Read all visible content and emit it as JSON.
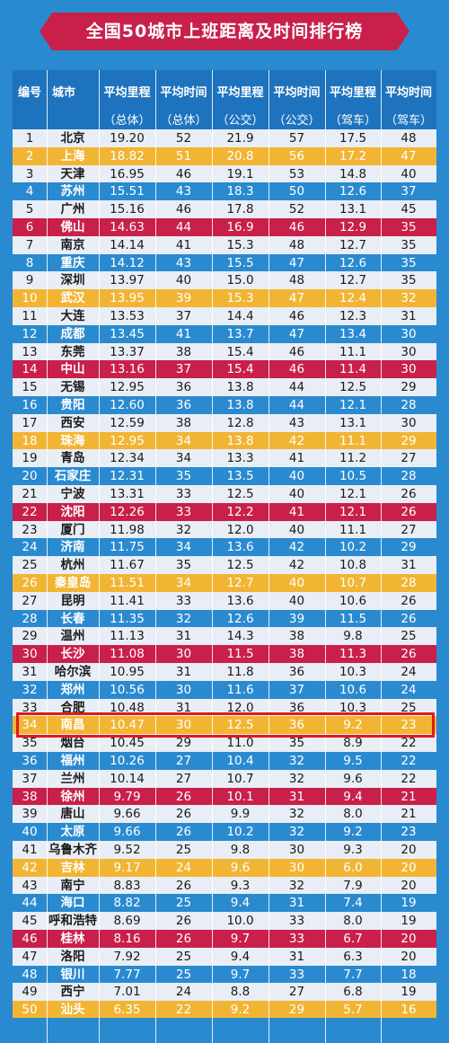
{
  "title": "全国50城市上班距离及时间排行榜",
  "headers": [
    {
      "l1": "编号",
      "l2": ""
    },
    {
      "l1": "城市",
      "l2": ""
    },
    {
      "l1": "平均里程",
      "l2": "（总体）"
    },
    {
      "l1": "平均时间",
      "l2": "（总体）"
    },
    {
      "l1": "平均里程",
      "l2": "（公交）"
    },
    {
      "l1": "平均时间",
      "l2": "（公交）"
    },
    {
      "l1": "平均里程",
      "l2": "（驾车）"
    },
    {
      "l1": "平均时间",
      "l2": "（驾车）"
    }
  ],
  "colors": {
    "odd": "#e9eef6",
    "even": "#2a8ad0",
    "gold": "#f2b533",
    "red": "#c8204a",
    "highlight_border": "#e01b1b"
  },
  "highlighted_row": "34",
  "rows": [
    {
      "n": "1",
      "city": "北京",
      "d1": "19.20",
      "t1": "52",
      "d2": "21.9",
      "t2": "57",
      "d3": "17.5",
      "t3": "48",
      "style": "odd"
    },
    {
      "n": "2",
      "city": "上海",
      "d1": "18.82",
      "t1": "51",
      "d2": "20.8",
      "t2": "56",
      "d3": "17.2",
      "t3": "47",
      "style": "gold"
    },
    {
      "n": "3",
      "city": "天津",
      "d1": "16.95",
      "t1": "46",
      "d2": "19.1",
      "t2": "53",
      "d3": "14.8",
      "t3": "40",
      "style": "odd"
    },
    {
      "n": "4",
      "city": "苏州",
      "d1": "15.51",
      "t1": "43",
      "d2": "18.3",
      "t2": "50",
      "d3": "12.6",
      "t3": "37",
      "style": "even"
    },
    {
      "n": "5",
      "city": "广州",
      "d1": "15.16",
      "t1": "46",
      "d2": "17.8",
      "t2": "52",
      "d3": "13.1",
      "t3": "45",
      "style": "odd"
    },
    {
      "n": "6",
      "city": "佛山",
      "d1": "14.63",
      "t1": "44",
      "d2": "16.9",
      "t2": "46",
      "d3": "12.9",
      "t3": "35",
      "style": "red"
    },
    {
      "n": "7",
      "city": "南京",
      "d1": "14.14",
      "t1": "41",
      "d2": "15.3",
      "t2": "48",
      "d3": "12.7",
      "t3": "35",
      "style": "odd"
    },
    {
      "n": "8",
      "city": "重庆",
      "d1": "14.12",
      "t1": "43",
      "d2": "15.5",
      "t2": "47",
      "d3": "12.6",
      "t3": "35",
      "style": "even"
    },
    {
      "n": "9",
      "city": "深圳",
      "d1": "13.97",
      "t1": "40",
      "d2": "15.0",
      "t2": "48",
      "d3": "12.7",
      "t3": "35",
      "style": "odd"
    },
    {
      "n": "10",
      "city": "武汉",
      "d1": "13.95",
      "t1": "39",
      "d2": "15.3",
      "t2": "47",
      "d3": "12.4",
      "t3": "32",
      "style": "gold"
    },
    {
      "n": "11",
      "city": "大连",
      "d1": "13.53",
      "t1": "37",
      "d2": "14.4",
      "t2": "46",
      "d3": "12.3",
      "t3": "31",
      "style": "odd"
    },
    {
      "n": "12",
      "city": "成都",
      "d1": "13.45",
      "t1": "41",
      "d2": "13.7",
      "t2": "47",
      "d3": "13.4",
      "t3": "30",
      "style": "even"
    },
    {
      "n": "13",
      "city": "东莞",
      "d1": "13.37",
      "t1": "38",
      "d2": "15.4",
      "t2": "46",
      "d3": "11.1",
      "t3": "30",
      "style": "odd"
    },
    {
      "n": "14",
      "city": "中山",
      "d1": "13.16",
      "t1": "37",
      "d2": "15.4",
      "t2": "46",
      "d3": "11.4",
      "t3": "30",
      "style": "red"
    },
    {
      "n": "15",
      "city": "无锡",
      "d1": "12.95",
      "t1": "36",
      "d2": "13.8",
      "t2": "44",
      "d3": "12.5",
      "t3": "29",
      "style": "odd"
    },
    {
      "n": "16",
      "city": "贵阳",
      "d1": "12.60",
      "t1": "36",
      "d2": "13.8",
      "t2": "44",
      "d3": "12.1",
      "t3": "28",
      "style": "even"
    },
    {
      "n": "17",
      "city": "西安",
      "d1": "12.59",
      "t1": "38",
      "d2": "12.8",
      "t2": "43",
      "d3": "13.1",
      "t3": "30",
      "style": "odd"
    },
    {
      "n": "18",
      "city": "珠海",
      "d1": "12.95",
      "t1": "34",
      "d2": "13.8",
      "t2": "42",
      "d3": "11.1",
      "t3": "29",
      "style": "gold"
    },
    {
      "n": "19",
      "city": "青岛",
      "d1": "12.34",
      "t1": "34",
      "d2": "13.3",
      "t2": "41",
      "d3": "11.2",
      "t3": "27",
      "style": "odd"
    },
    {
      "n": "20",
      "city": "石家庄",
      "d1": "12.31",
      "t1": "35",
      "d2": "13.5",
      "t2": "40",
      "d3": "10.5",
      "t3": "28",
      "style": "even"
    },
    {
      "n": "21",
      "city": "宁波",
      "d1": "13.31",
      "t1": "33",
      "d2": "12.5",
      "t2": "40",
      "d3": "12.1",
      "t3": "26",
      "style": "odd"
    },
    {
      "n": "22",
      "city": "沈阳",
      "d1": "12.26",
      "t1": "33",
      "d2": "12.2",
      "t2": "41",
      "d3": "12.1",
      "t3": "26",
      "style": "red"
    },
    {
      "n": "23",
      "city": "厦门",
      "d1": "11.98",
      "t1": "32",
      "d2": "12.0",
      "t2": "40",
      "d3": "11.1",
      "t3": "27",
      "style": "odd"
    },
    {
      "n": "24",
      "city": "济南",
      "d1": "11.75",
      "t1": "34",
      "d2": "13.6",
      "t2": "42",
      "d3": "10.2",
      "t3": "29",
      "style": "even"
    },
    {
      "n": "25",
      "city": "杭州",
      "d1": "11.67",
      "t1": "35",
      "d2": "12.5",
      "t2": "42",
      "d3": "10.8",
      "t3": "31",
      "style": "odd"
    },
    {
      "n": "26",
      "city": "秦皇岛",
      "d1": "11.51",
      "t1": "34",
      "d2": "12.7",
      "t2": "40",
      "d3": "10.7",
      "t3": "28",
      "style": "gold"
    },
    {
      "n": "27",
      "city": "昆明",
      "d1": "11.41",
      "t1": "33",
      "d2": "13.6",
      "t2": "40",
      "d3": "10.6",
      "t3": "26",
      "style": "odd"
    },
    {
      "n": "28",
      "city": "长春",
      "d1": "11.35",
      "t1": "32",
      "d2": "12.6",
      "t2": "39",
      "d3": "11.5",
      "t3": "26",
      "style": "even"
    },
    {
      "n": "29",
      "city": "温州",
      "d1": "11.13",
      "t1": "31",
      "d2": "14.3",
      "t2": "38",
      "d3": "9.8",
      "t3": "25",
      "style": "odd"
    },
    {
      "n": "30",
      "city": "长沙",
      "d1": "11.08",
      "t1": "30",
      "d2": "11.5",
      "t2": "38",
      "d3": "11.3",
      "t3": "26",
      "style": "red"
    },
    {
      "n": "31",
      "city": "哈尔滨",
      "d1": "10.95",
      "t1": "31",
      "d2": "11.8",
      "t2": "36",
      "d3": "10.3",
      "t3": "24",
      "style": "odd"
    },
    {
      "n": "32",
      "city": "郑州",
      "d1": "10.56",
      "t1": "30",
      "d2": "11.6",
      "t2": "37",
      "d3": "10.6",
      "t3": "24",
      "style": "even"
    },
    {
      "n": "33",
      "city": "合肥",
      "d1": "10.48",
      "t1": "31",
      "d2": "12.0",
      "t2": "36",
      "d3": "10.3",
      "t3": "25",
      "style": "odd"
    },
    {
      "n": "34",
      "city": "南昌",
      "d1": "10.47",
      "t1": "30",
      "d2": "12.5",
      "t2": "36",
      "d3": "9.2",
      "t3": "23",
      "style": "gold"
    },
    {
      "n": "35",
      "city": "烟台",
      "d1": "10.45",
      "t1": "29",
      "d2": "11.0",
      "t2": "35",
      "d3": "8.9",
      "t3": "22",
      "style": "odd"
    },
    {
      "n": "36",
      "city": "福州",
      "d1": "10.26",
      "t1": "27",
      "d2": "10.4",
      "t2": "32",
      "d3": "9.5",
      "t3": "22",
      "style": "even"
    },
    {
      "n": "37",
      "city": "兰州",
      "d1": "10.14",
      "t1": "27",
      "d2": "10.7",
      "t2": "32",
      "d3": "9.6",
      "t3": "22",
      "style": "odd"
    },
    {
      "n": "38",
      "city": "徐州",
      "d1": "9.79",
      "t1": "26",
      "d2": "10.1",
      "t2": "31",
      "d3": "9.4",
      "t3": "21",
      "style": "red"
    },
    {
      "n": "39",
      "city": "唐山",
      "d1": "9.66",
      "t1": "26",
      "d2": "9.9",
      "t2": "32",
      "d3": "8.0",
      "t3": "21",
      "style": "odd"
    },
    {
      "n": "40",
      "city": "太原",
      "d1": "9.66",
      "t1": "26",
      "d2": "10.2",
      "t2": "32",
      "d3": "9.2",
      "t3": "23",
      "style": "even"
    },
    {
      "n": "41",
      "city": "乌鲁木齐",
      "d1": "9.52",
      "t1": "25",
      "d2": "9.8",
      "t2": "30",
      "d3": "9.3",
      "t3": "20",
      "style": "odd"
    },
    {
      "n": "42",
      "city": "吉林",
      "d1": "9.17",
      "t1": "24",
      "d2": "9.6",
      "t2": "30",
      "d3": "6.0",
      "t3": "20",
      "style": "gold"
    },
    {
      "n": "43",
      "city": "南宁",
      "d1": "8.83",
      "t1": "26",
      "d2": "9.3",
      "t2": "32",
      "d3": "7.9",
      "t3": "20",
      "style": "odd"
    },
    {
      "n": "44",
      "city": "海口",
      "d1": "8.82",
      "t1": "25",
      "d2": "9.4",
      "t2": "31",
      "d3": "7.4",
      "t3": "19",
      "style": "even"
    },
    {
      "n": "45",
      "city": "呼和浩特",
      "d1": "8.69",
      "t1": "26",
      "d2": "10.0",
      "t2": "33",
      "d3": "8.0",
      "t3": "19",
      "style": "odd"
    },
    {
      "n": "46",
      "city": "桂林",
      "d1": "8.16",
      "t1": "26",
      "d2": "9.7",
      "t2": "33",
      "d3": "6.7",
      "t3": "20",
      "style": "red"
    },
    {
      "n": "47",
      "city": "洛阳",
      "d1": "7.92",
      "t1": "25",
      "d2": "9.4",
      "t2": "31",
      "d3": "6.3",
      "t3": "20",
      "style": "odd"
    },
    {
      "n": "48",
      "city": "银川",
      "d1": "7.77",
      "t1": "25",
      "d2": "9.7",
      "t2": "33",
      "d3": "7.7",
      "t3": "18",
      "style": "even"
    },
    {
      "n": "49",
      "city": "西宁",
      "d1": "7.01",
      "t1": "24",
      "d2": "8.8",
      "t2": "27",
      "d3": "6.8",
      "t3": "19",
      "style": "odd"
    },
    {
      "n": "50",
      "city": "汕头",
      "d1": "6.35",
      "t1": "22",
      "d2": "9.2",
      "t2": "29",
      "d3": "5.7",
      "t3": "16",
      "style": "gold"
    }
  ]
}
